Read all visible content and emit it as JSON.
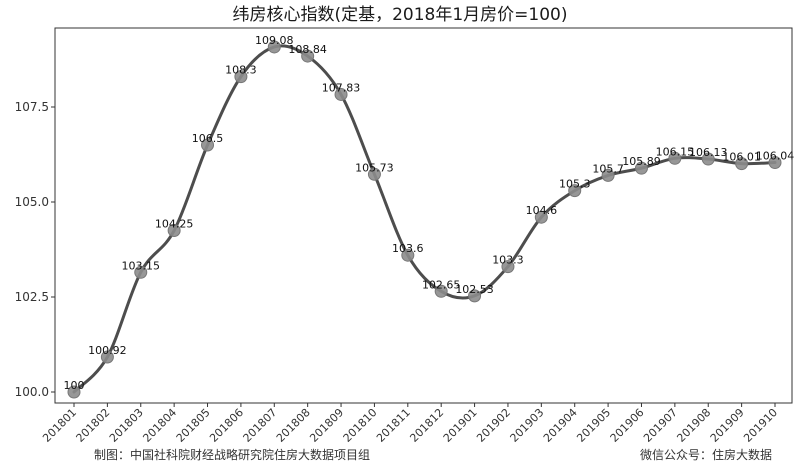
{
  "footer": {
    "left": "制图：中国社科院财经战略研究院住房大数据项目组",
    "right": "微信公众号：住房大数据"
  },
  "chart_data": {
    "type": "line",
    "title": "纬房核心指数(定基，2018年1月房价=100)",
    "xlabel": "",
    "ylabel": "",
    "categories": [
      "201801",
      "201802",
      "201803",
      "201804",
      "201805",
      "201806",
      "201807",
      "201808",
      "201809",
      "201810",
      "201811",
      "201812",
      "201901",
      "201902",
      "201903",
      "201904",
      "201905",
      "201906",
      "201907",
      "201908",
      "201909",
      "201910"
    ],
    "values": [
      100,
      100.92,
      103.15,
      104.25,
      106.5,
      108.3,
      109.08,
      108.84,
      107.83,
      105.73,
      103.6,
      102.65,
      102.53,
      103.3,
      104.6,
      105.3,
      105.7,
      105.89,
      106.15,
      106.13,
      106.01,
      106.04
    ],
    "data_labels": [
      "100",
      "100.92",
      "103.15",
      "104.25",
      "106.5",
      "108.3",
      "109.08",
      "108.84",
      "107.83",
      "105.73",
      "103.6",
      "102.65",
      "102.53",
      "103.3",
      "104.6",
      "105.3",
      "105.7",
      "105.89",
      "106.15",
      "106.13",
      "106.01",
      "106.04"
    ],
    "yticks": [
      "100.0",
      "102.5",
      "105.0",
      "107.5"
    ],
    "ytick_values": [
      100,
      102.5,
      105,
      107.5
    ],
    "ylim": [
      99.6,
      109.5
    ],
    "grid": false,
    "line_color": "#4d4d4d",
    "marker_color": "#8c8c8c"
  }
}
